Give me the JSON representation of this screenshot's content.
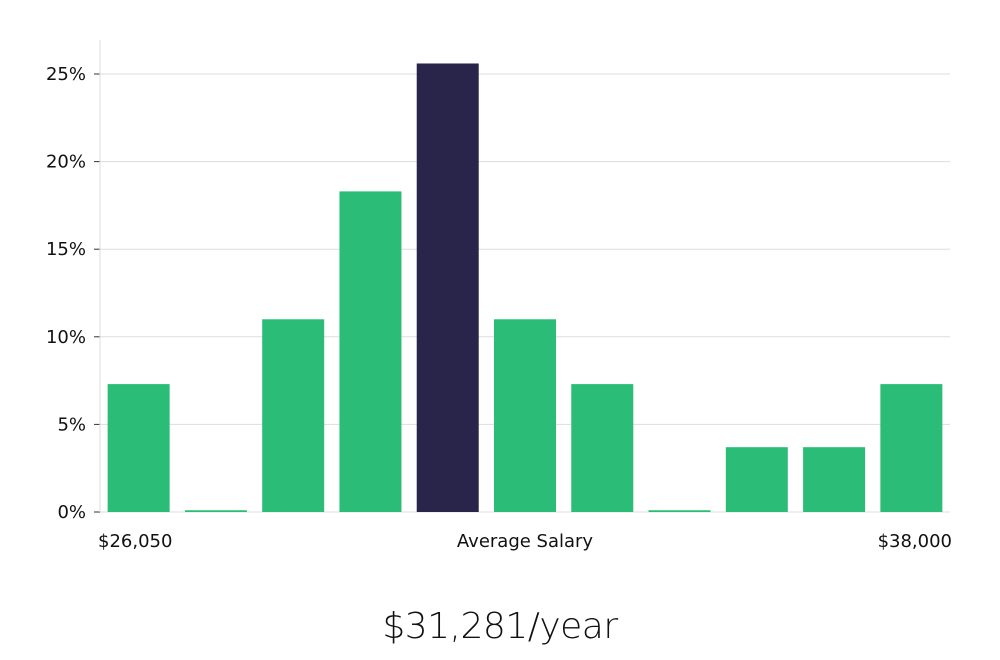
{
  "chart_data": {
    "type": "bar",
    "categories": [
      "1",
      "2",
      "3",
      "4",
      "5",
      "6",
      "7",
      "8",
      "9",
      "10",
      "11"
    ],
    "values": [
      7.3,
      0.1,
      11.0,
      18.3,
      25.6,
      11.0,
      7.3,
      0.1,
      3.7,
      3.7,
      7.3
    ],
    "highlight_index": 4,
    "ylim": [
      0,
      27
    ],
    "yticks": [
      0,
      5,
      10,
      15,
      20,
      25
    ],
    "ytick_labels": [
      "0%",
      "5%",
      "10%",
      "15%",
      "20%",
      "25%"
    ],
    "x_left_label": "$26,050",
    "x_center_label": "Average Salary",
    "x_right_label": "$38,000",
    "grid": true,
    "colors": {
      "bar": "#2bbd77",
      "highlight": "#28244a",
      "grid": "#dddddd",
      "axis": "#dddddd"
    }
  },
  "summary": {
    "average_salary": "$31,281/year"
  }
}
